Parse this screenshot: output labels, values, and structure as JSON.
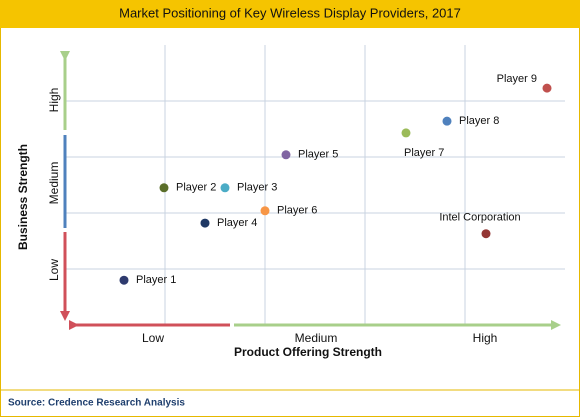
{
  "chart_data": {
    "type": "scatter",
    "title": "Market Positioning of Key Wireless Display Providers, 2017",
    "x_label": "Product Offering Strength",
    "y_label": "Business Strength",
    "x_categories": [
      "Low",
      "Medium",
      "High"
    ],
    "y_categories": [
      "Low",
      "Medium",
      "High"
    ],
    "xlim": [
      0,
      5
    ],
    "ylim": [
      0,
      5
    ],
    "xticks": [
      1,
      2,
      3,
      4
    ],
    "yticks": [
      1,
      2,
      3,
      4
    ],
    "grid": true,
    "series": [
      {
        "name": "Player 1",
        "color": "#2e3a6e",
        "x": [
          0.59
        ],
        "values": [
          0.8
        ]
      },
      {
        "name": "Player 2",
        "color": "#5a6e2a",
        "x": [
          0.99
        ],
        "values": [
          2.45
        ]
      },
      {
        "name": "Player 3",
        "color": "#4bacc6",
        "x": [
          1.6
        ],
        "values": [
          2.45
        ]
      },
      {
        "name": "Player 4",
        "color": "#1f3864",
        "x": [
          1.4
        ],
        "values": [
          1.82
        ]
      },
      {
        "name": "Player 5",
        "color": "#8064a2",
        "x": [
          2.21
        ],
        "values": [
          3.04
        ]
      },
      {
        "name": "Player 6",
        "color": "#f79646",
        "x": [
          2.0
        ],
        "values": [
          2.04
        ]
      },
      {
        "name": "Player 7",
        "color": "#9bbb59",
        "x": [
          3.41
        ],
        "values": [
          3.43
        ]
      },
      {
        "name": "Player 8",
        "color": "#4f81bd",
        "x": [
          3.82
        ],
        "values": [
          3.64
        ]
      },
      {
        "name": "Player 9",
        "color": "#c0504d",
        "x": [
          4.82
        ],
        "values": [
          4.23
        ]
      },
      {
        "name": "Intel Corporation",
        "color": "#943634",
        "x": [
          4.21
        ],
        "values": [
          1.63
        ]
      }
    ],
    "source": "Source: Credence Research Analysis"
  }
}
